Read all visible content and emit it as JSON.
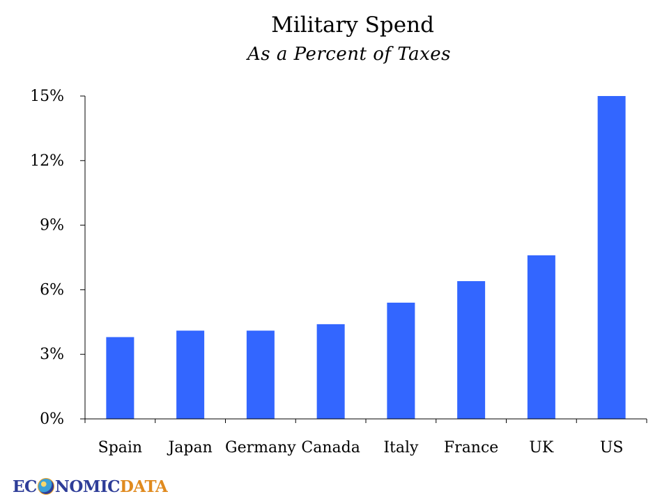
{
  "chart_data": {
    "type": "bar",
    "title": "Military Spend",
    "subtitle": "As a Percent of Taxes",
    "categories": [
      "Spain",
      "Japan",
      "Germany",
      "Canada",
      "Italy",
      "France",
      "UK",
      "US"
    ],
    "values": [
      3.8,
      4.1,
      4.1,
      4.4,
      5.4,
      6.4,
      7.6,
      15.0
    ],
    "ylim": [
      0,
      15
    ],
    "yticks": [
      0,
      3,
      6,
      9,
      12,
      15
    ],
    "ytick_labels": [
      "0%",
      "3%",
      "6%",
      "9%",
      "12%",
      "15%"
    ],
    "xlabel": "",
    "ylabel": "",
    "bar_color": "#3366ff",
    "grid": false
  },
  "logo": {
    "text_before": "EC",
    "text_middle": "NOMIC",
    "text_after": "DATA"
  }
}
